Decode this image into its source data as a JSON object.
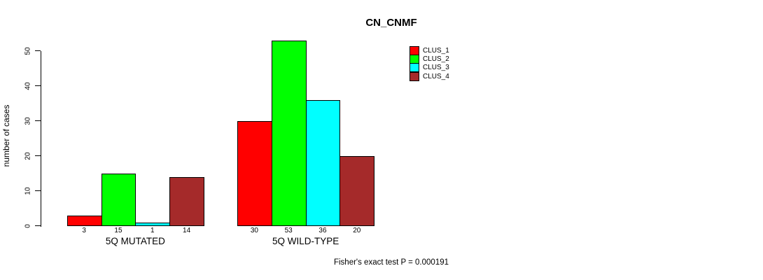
{
  "title": "CN_CNMF",
  "y_axis": {
    "label": "number of cases",
    "ticks": [
      0,
      10,
      20,
      30,
      40,
      50
    ]
  },
  "footer": {
    "note": "Fisher's exact test P = 0.000191"
  },
  "legend": {
    "entries": [
      "CLUS_1",
      "CLUS_2",
      "CLUS_3",
      "CLUS_4"
    ]
  },
  "chart_data": {
    "type": "bar",
    "title": "CN_CNMF",
    "categories": [
      "5Q MUTATED",
      "5Q WILD-TYPE"
    ],
    "series": [
      {
        "name": "CLUS_1",
        "color": "#ff0000",
        "values": [
          3,
          30
        ]
      },
      {
        "name": "CLUS_2",
        "color": "#00ff00",
        "values": [
          15,
          53
        ]
      },
      {
        "name": "CLUS_3",
        "color": "#00ffff",
        "values": [
          1,
          36
        ]
      },
      {
        "name": "CLUS_4",
        "color": "#a52a2a",
        "values": [
          14,
          20
        ]
      }
    ],
    "bar_value_labels_shown": true,
    "xlabel": "",
    "ylabel": "number of cases",
    "ylim": [
      0,
      55
    ],
    "yticks": [
      0,
      10,
      20,
      30,
      40,
      50
    ],
    "grid": false,
    "legend_position": "top-right",
    "annotation": "Fisher's exact test P = 0.000191"
  }
}
